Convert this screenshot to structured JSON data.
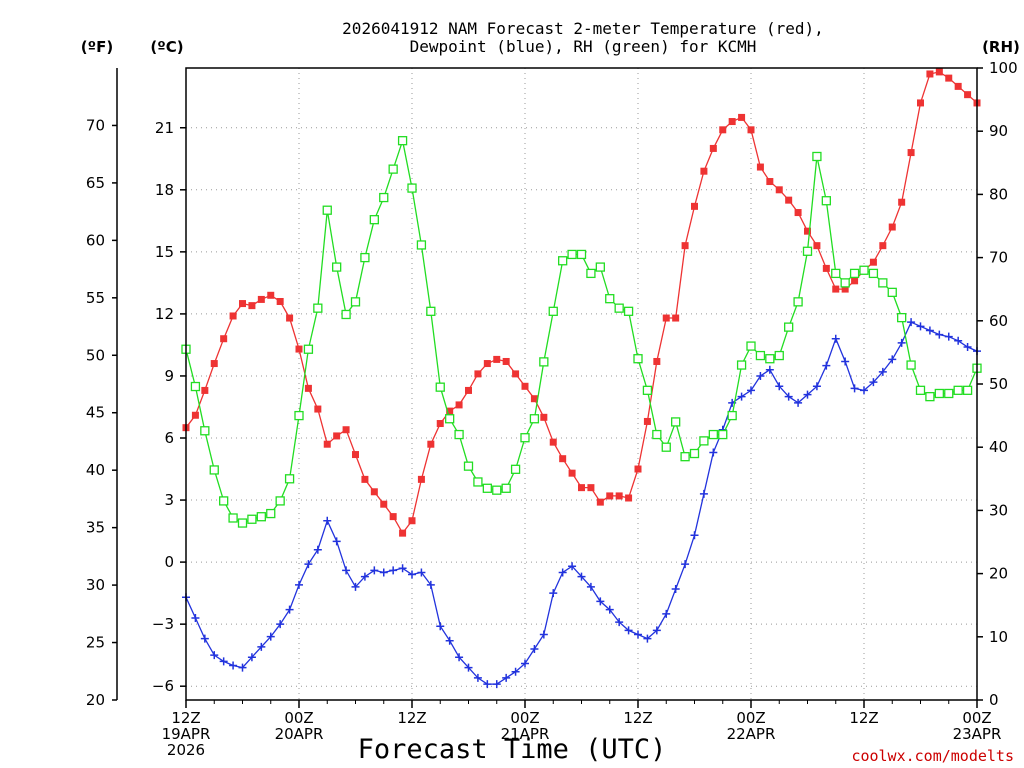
{
  "chart_data": {
    "type": "line",
    "title_line1": "2026041912 NAM Forecast 2-meter Temperature (red),",
    "title_line2": "Dewpoint (blue), RH (green) for KCMH",
    "xlabel": "Forecast Time (UTC)",
    "credit": "coolwx.com/modelts",
    "credit_color": "#cc0000",
    "units": {
      "fahrenheit": "(ºF)",
      "celsius": "(ºC)",
      "rh": "(RH)"
    },
    "x_range_hours": [
      0,
      84
    ],
    "celsius_range": [
      -6.667,
      23.889
    ],
    "rh_range": [
      0,
      100
    ],
    "fahrenheit_ticks": [
      20,
      25,
      30,
      35,
      40,
      45,
      50,
      55,
      60,
      65,
      70
    ],
    "celsius_ticks": [
      -6,
      -3,
      0,
      3,
      6,
      9,
      12,
      15,
      18,
      21
    ],
    "rh_ticks": [
      0,
      10,
      20,
      30,
      40,
      50,
      60,
      70,
      80,
      90,
      100
    ],
    "x_ticks": [
      {
        "hour": 0,
        "lines": [
          "12Z",
          "19APR",
          "2026"
        ]
      },
      {
        "hour": 12,
        "lines": [
          "00Z",
          "20APR"
        ]
      },
      {
        "hour": 24,
        "lines": [
          "12Z"
        ]
      },
      {
        "hour": 36,
        "lines": [
          "00Z",
          "21APR"
        ]
      },
      {
        "hour": 48,
        "lines": [
          "12Z"
        ]
      },
      {
        "hour": 60,
        "lines": [
          "00Z",
          "22APR"
        ]
      },
      {
        "hour": 72,
        "lines": [
          "12Z"
        ]
      },
      {
        "hour": 84,
        "lines": [
          "00Z",
          "23APR"
        ]
      }
    ],
    "x_minor_tick_hours": [
      3,
      6,
      9,
      15,
      18,
      21,
      27,
      30,
      33,
      39,
      42,
      45,
      51,
      54,
      57,
      63,
      66,
      69,
      75,
      78,
      81
    ],
    "series": [
      {
        "name": "Temperature",
        "unit": "C",
        "color": "#ee3333",
        "marker": "filled-square",
        "x": [
          0,
          1,
          2,
          3,
          4,
          5,
          6,
          7,
          8,
          9,
          10,
          11,
          12,
          13,
          14,
          15,
          16,
          17,
          18,
          19,
          20,
          21,
          22,
          23,
          24,
          25,
          26,
          27,
          28,
          29,
          30,
          31,
          32,
          33,
          34,
          35,
          36,
          37,
          38,
          39,
          40,
          41,
          42,
          43,
          44,
          45,
          46,
          47,
          48,
          49,
          50,
          51,
          52,
          53,
          54,
          55,
          56,
          57,
          58,
          59,
          60,
          61,
          62,
          63,
          64,
          65,
          66,
          67,
          68,
          69,
          70,
          71,
          72,
          73,
          74,
          75,
          76,
          77,
          78,
          79,
          80,
          81,
          82,
          83,
          84
        ],
        "values": [
          6.5,
          7.1,
          8.3,
          9.6,
          10.8,
          11.9,
          12.5,
          12.4,
          12.7,
          12.9,
          12.6,
          11.8,
          10.3,
          8.4,
          7.4,
          5.7,
          6.1,
          6.4,
          5.2,
          4.0,
          3.4,
          2.8,
          2.2,
          1.4,
          2.0,
          4.0,
          5.7,
          6.7,
          7.3,
          7.6,
          8.3,
          9.1,
          9.6,
          9.8,
          9.7,
          9.1,
          8.5,
          7.9,
          7.0,
          5.8,
          5.0,
          4.3,
          3.6,
          3.6,
          2.9,
          3.2,
          3.2,
          3.1,
          4.5,
          6.8,
          9.7,
          11.8,
          11.8,
          15.3,
          17.2,
          18.9,
          20.0,
          20.9,
          21.3,
          21.5,
          20.9,
          19.1,
          18.4,
          18.0,
          17.5,
          16.9,
          16.0,
          15.3,
          14.2,
          13.2,
          13.2,
          13.6,
          14.1,
          14.5,
          15.3,
          16.2,
          17.4,
          19.8,
          22.2,
          23.6,
          23.7,
          23.4,
          23.0,
          22.6,
          22.2
        ]
      },
      {
        "name": "Dewpoint",
        "unit": "C",
        "color": "#2233dd",
        "marker": "plus",
        "x": [
          0,
          1,
          2,
          3,
          4,
          5,
          6,
          7,
          8,
          9,
          10,
          11,
          12,
          13,
          14,
          15,
          16,
          17,
          18,
          19,
          20,
          21,
          22,
          23,
          24,
          25,
          26,
          27,
          28,
          29,
          30,
          31,
          32,
          33,
          34,
          35,
          36,
          37,
          38,
          39,
          40,
          41,
          42,
          43,
          44,
          45,
          46,
          47,
          48,
          49,
          50,
          51,
          52,
          53,
          54,
          55,
          56,
          57,
          58,
          59,
          60,
          61,
          62,
          63,
          64,
          65,
          66,
          67,
          68,
          69,
          70,
          71,
          72,
          73,
          74,
          75,
          76,
          77,
          78,
          79,
          80,
          81,
          82,
          83,
          84
        ],
        "values": [
          -1.7,
          -2.7,
          -3.7,
          -4.5,
          -4.8,
          -5.0,
          -5.1,
          -4.6,
          -4.1,
          -3.6,
          -3.0,
          -2.3,
          -1.1,
          -0.1,
          0.6,
          2.0,
          1.0,
          -0.4,
          -1.2,
          -0.7,
          -0.4,
          -0.5,
          -0.4,
          -0.3,
          -0.6,
          -0.5,
          -1.1,
          -3.1,
          -3.8,
          -4.6,
          -5.1,
          -5.6,
          -5.9,
          -5.9,
          -5.6,
          -5.3,
          -4.9,
          -4.2,
          -3.5,
          -1.5,
          -0.5,
          -0.2,
          -0.7,
          -1.2,
          -1.9,
          -2.3,
          -2.9,
          -3.3,
          -3.5,
          -3.7,
          -3.3,
          -2.5,
          -1.3,
          -0.1,
          1.3,
          3.3,
          5.3,
          6.4,
          7.7,
          8.0,
          8.3,
          9.0,
          9.3,
          8.5,
          8.0,
          7.7,
          8.1,
          8.5,
          9.5,
          10.8,
          9.7,
          8.4,
          8.3,
          8.7,
          9.2,
          9.8,
          10.6,
          11.6,
          11.4,
          11.2,
          11.0,
          10.9,
          10.7,
          10.4,
          10.2
        ]
      },
      {
        "name": "Relative Humidity",
        "unit": "%",
        "color": "#22dd22",
        "marker": "open-square",
        "x": [
          0,
          1,
          2,
          3,
          4,
          5,
          6,
          7,
          8,
          9,
          10,
          11,
          12,
          13,
          14,
          15,
          16,
          17,
          18,
          19,
          20,
          21,
          22,
          23,
          24,
          25,
          26,
          27,
          28,
          29,
          30,
          31,
          32,
          33,
          34,
          35,
          36,
          37,
          38,
          39,
          40,
          41,
          42,
          43,
          44,
          45,
          46,
          47,
          48,
          49,
          50,
          51,
          52,
          53,
          54,
          55,
          56,
          57,
          58,
          59,
          60,
          61,
          62,
          63,
          64,
          65,
          66,
          67,
          68,
          69,
          70,
          71,
          72,
          73,
          74,
          75,
          76,
          77,
          78,
          79,
          80,
          81,
          82,
          83,
          84
        ],
        "values": [
          55.5,
          49.6,
          42.6,
          36.4,
          31.5,
          28.8,
          28.0,
          28.6,
          29.0,
          29.5,
          31.5,
          35.0,
          45.0,
          55.5,
          62.0,
          77.5,
          68.5,
          61.0,
          63.0,
          70.0,
          76.0,
          79.5,
          84.0,
          88.5,
          81.0,
          72.0,
          61.5,
          49.5,
          44.5,
          42.0,
          37.0,
          34.5,
          33.5,
          33.2,
          33.5,
          36.5,
          41.5,
          44.5,
          53.5,
          61.5,
          69.5,
          70.5,
          70.5,
          67.5,
          68.5,
          63.5,
          62.0,
          61.5,
          54.0,
          49.0,
          42.0,
          40.0,
          44.0,
          38.5,
          39.0,
          41.0,
          42.0,
          42.0,
          45.0,
          53.0,
          56.0,
          54.5,
          54.0,
          54.5,
          59.0,
          63.0,
          71.0,
          86.0,
          79.0,
          67.5,
          66.0,
          67.5,
          68.0,
          67.5,
          66.0,
          64.5,
          60.5,
          53.0,
          49.0,
          48.0,
          48.5,
          48.5,
          49.0,
          49.0,
          52.5
        ]
      }
    ]
  }
}
